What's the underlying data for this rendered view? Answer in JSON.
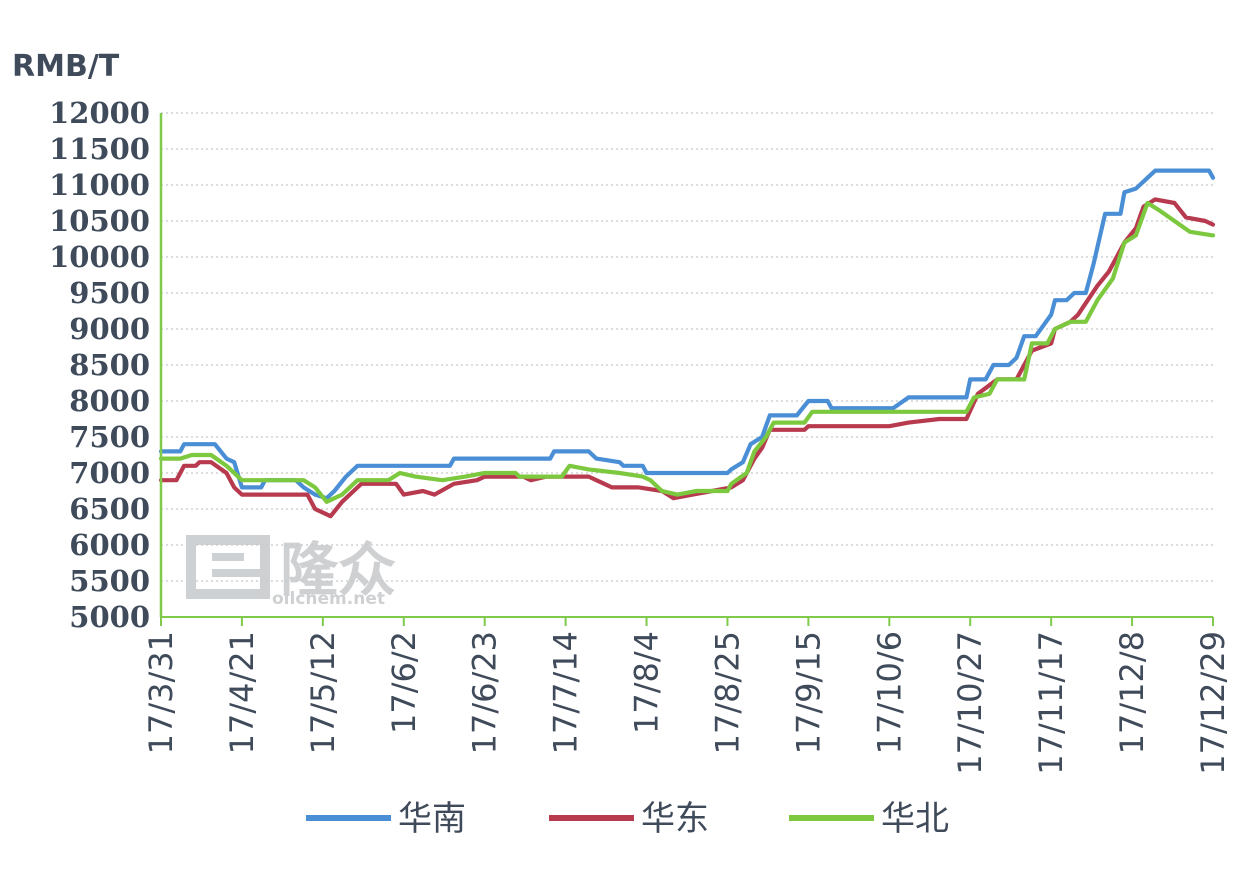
{
  "watermark": {
    "brand": "隆众",
    "site": "oilchem.net"
  },
  "colors": {
    "axis": "#7fc94b",
    "grid": "#c8c8c8",
    "text": "#3f4a5a"
  },
  "chart_data": {
    "type": "line",
    "ylabel": "RMB/T",
    "ylim": [
      5000,
      12000
    ],
    "yticks": [
      "12000",
      "11500",
      "11000",
      "10500",
      "10000",
      "9500",
      "9000",
      "8500",
      "8000",
      "7500",
      "7000",
      "6500",
      "6000",
      "5500",
      "5000"
    ],
    "grid": "horizontal dotted",
    "legend": "bottom",
    "xlim": [
      "2017-03-31",
      "2017-12-29"
    ],
    "x_tick_labels": [
      "17/3/31",
      "17/4/21",
      "17/5/12",
      "17/6/2",
      "17/6/23",
      "17/7/14",
      "17/8/4",
      "17/8/25",
      "17/9/15",
      "17/10/6",
      "17/10/27",
      "17/11/17",
      "17/12/8",
      "17/12/29"
    ],
    "series": [
      {
        "name": "华南",
        "color": "#4a8fd6",
        "points": [
          [
            "2017-03-31",
            7300
          ],
          [
            "2017-04-05",
            7300
          ],
          [
            "2017-04-06",
            7400
          ],
          [
            "2017-04-14",
            7400
          ],
          [
            "2017-04-17",
            7200
          ],
          [
            "2017-04-19",
            7150
          ],
          [
            "2017-04-21",
            6800
          ],
          [
            "2017-04-26",
            6800
          ],
          [
            "2017-04-27",
            6900
          ],
          [
            "2017-05-03",
            6900
          ],
          [
            "2017-05-05",
            6900
          ],
          [
            "2017-05-07",
            6800
          ],
          [
            "2017-05-10",
            6700
          ],
          [
            "2017-05-13",
            6650
          ],
          [
            "2017-05-15",
            6750
          ],
          [
            "2017-05-18",
            6950
          ],
          [
            "2017-05-20",
            7050
          ],
          [
            "2017-05-21",
            7100
          ],
          [
            "2017-06-14",
            7100
          ],
          [
            "2017-06-15",
            7200
          ],
          [
            "2017-07-10",
            7200
          ],
          [
            "2017-07-11",
            7300
          ],
          [
            "2017-07-20",
            7300
          ],
          [
            "2017-07-22",
            7200
          ],
          [
            "2017-07-28",
            7150
          ],
          [
            "2017-07-29",
            7100
          ],
          [
            "2017-08-03",
            7100
          ],
          [
            "2017-08-04",
            7000
          ],
          [
            "2017-08-25",
            7000
          ],
          [
            "2017-08-26",
            7050
          ],
          [
            "2017-08-29",
            7150
          ],
          [
            "2017-08-31",
            7400
          ],
          [
            "2017-09-03",
            7500
          ],
          [
            "2017-09-05",
            7800
          ],
          [
            "2017-09-12",
            7800
          ],
          [
            "2017-09-15",
            8000
          ],
          [
            "2017-09-20",
            8000
          ],
          [
            "2017-09-21",
            7900
          ],
          [
            "2017-10-07",
            7900
          ],
          [
            "2017-10-11",
            8050
          ],
          [
            "2017-10-26",
            8050
          ],
          [
            "2017-10-27",
            8300
          ],
          [
            "2017-10-31",
            8300
          ],
          [
            "2017-11-02",
            8500
          ],
          [
            "2017-11-06",
            8500
          ],
          [
            "2017-11-08",
            8600
          ],
          [
            "2017-11-10",
            8900
          ],
          [
            "2017-11-13",
            8900
          ],
          [
            "2017-11-17",
            9200
          ],
          [
            "2017-11-18",
            9400
          ],
          [
            "2017-11-21",
            9400
          ],
          [
            "2017-11-23",
            9500
          ],
          [
            "2017-11-26",
            9500
          ],
          [
            "2017-11-28",
            9900
          ],
          [
            "2017-12-01",
            10600
          ],
          [
            "2017-12-05",
            10600
          ],
          [
            "2017-12-06",
            10900
          ],
          [
            "2017-12-09",
            10950
          ],
          [
            "2017-12-12",
            11100
          ],
          [
            "2017-12-14",
            11200
          ],
          [
            "2017-12-28",
            11200
          ],
          [
            "2017-12-29",
            11100
          ]
        ]
      },
      {
        "name": "华东",
        "color": "#b83a4e",
        "points": [
          [
            "2017-03-31",
            6900
          ],
          [
            "2017-04-04",
            6900
          ],
          [
            "2017-04-06",
            7100
          ],
          [
            "2017-04-09",
            7100
          ],
          [
            "2017-04-10",
            7150
          ],
          [
            "2017-04-13",
            7150
          ],
          [
            "2017-04-17",
            7000
          ],
          [
            "2017-04-19",
            6800
          ],
          [
            "2017-04-21",
            6700
          ],
          [
            "2017-05-08",
            6700
          ],
          [
            "2017-05-10",
            6500
          ],
          [
            "2017-05-14",
            6400
          ],
          [
            "2017-05-17",
            6600
          ],
          [
            "2017-05-21",
            6800
          ],
          [
            "2017-05-22",
            6850
          ],
          [
            "2017-05-31",
            6850
          ],
          [
            "2017-06-02",
            6700
          ],
          [
            "2017-06-07",
            6750
          ],
          [
            "2017-06-10",
            6700
          ],
          [
            "2017-06-15",
            6850
          ],
          [
            "2017-06-21",
            6900
          ],
          [
            "2017-06-23",
            6950
          ],
          [
            "2017-07-03",
            6950
          ],
          [
            "2017-07-05",
            6900
          ],
          [
            "2017-07-09",
            6950
          ],
          [
            "2017-07-20",
            6950
          ],
          [
            "2017-07-24",
            6850
          ],
          [
            "2017-07-26",
            6800
          ],
          [
            "2017-08-02",
            6800
          ],
          [
            "2017-08-08",
            6750
          ],
          [
            "2017-08-11",
            6650
          ],
          [
            "2017-08-16",
            6700
          ],
          [
            "2017-08-21",
            6750
          ],
          [
            "2017-08-26",
            6800
          ],
          [
            "2017-08-29",
            6900
          ],
          [
            "2017-09-01",
            7200
          ],
          [
            "2017-09-03",
            7350
          ],
          [
            "2017-09-05",
            7600
          ],
          [
            "2017-09-14",
            7600
          ],
          [
            "2017-09-15",
            7650
          ],
          [
            "2017-10-06",
            7650
          ],
          [
            "2017-10-11",
            7700
          ],
          [
            "2017-10-19",
            7750
          ],
          [
            "2017-10-26",
            7750
          ],
          [
            "2017-10-29",
            8100
          ],
          [
            "2017-11-03",
            8300
          ],
          [
            "2017-11-08",
            8300
          ],
          [
            "2017-11-12",
            8700
          ],
          [
            "2017-11-17",
            8800
          ],
          [
            "2017-11-18",
            9000
          ],
          [
            "2017-11-22",
            9100
          ],
          [
            "2017-11-24",
            9200
          ],
          [
            "2017-11-29",
            9600
          ],
          [
            "2017-12-02",
            9800
          ],
          [
            "2017-12-06",
            10200
          ],
          [
            "2017-12-09",
            10400
          ],
          [
            "2017-12-11",
            10700
          ],
          [
            "2017-12-14",
            10800
          ],
          [
            "2017-12-19",
            10750
          ],
          [
            "2017-12-22",
            10550
          ],
          [
            "2017-12-27",
            10500
          ],
          [
            "2017-12-29",
            10450
          ]
        ]
      },
      {
        "name": "华北",
        "color": "#7cc83e",
        "points": [
          [
            "2017-03-31",
            7200
          ],
          [
            "2017-04-05",
            7200
          ],
          [
            "2017-04-08",
            7250
          ],
          [
            "2017-04-13",
            7250
          ],
          [
            "2017-04-17",
            7100
          ],
          [
            "2017-04-20",
            6950
          ],
          [
            "2017-04-21",
            6900
          ],
          [
            "2017-05-07",
            6900
          ],
          [
            "2017-05-10",
            6800
          ],
          [
            "2017-05-13",
            6600
          ],
          [
            "2017-05-17",
            6700
          ],
          [
            "2017-05-21",
            6900
          ],
          [
            "2017-05-29",
            6900
          ],
          [
            "2017-06-01",
            7000
          ],
          [
            "2017-06-05",
            6950
          ],
          [
            "2017-06-12",
            6900
          ],
          [
            "2017-06-18",
            6950
          ],
          [
            "2017-06-23",
            7000
          ],
          [
            "2017-07-01",
            7000
          ],
          [
            "2017-07-02",
            6950
          ],
          [
            "2017-07-13",
            6950
          ],
          [
            "2017-07-15",
            7100
          ],
          [
            "2017-07-20",
            7050
          ],
          [
            "2017-07-28",
            7000
          ],
          [
            "2017-08-03",
            6950
          ],
          [
            "2017-08-05",
            6900
          ],
          [
            "2017-08-08",
            6750
          ],
          [
            "2017-08-12",
            6700
          ],
          [
            "2017-08-17",
            6750
          ],
          [
            "2017-08-25",
            6750
          ],
          [
            "2017-08-26",
            6850
          ],
          [
            "2017-08-30",
            7000
          ],
          [
            "2017-09-01",
            7300
          ],
          [
            "2017-09-04",
            7500
          ],
          [
            "2017-09-06",
            7700
          ],
          [
            "2017-09-14",
            7700
          ],
          [
            "2017-09-16",
            7850
          ],
          [
            "2017-10-26",
            7850
          ],
          [
            "2017-10-28",
            8050
          ],
          [
            "2017-11-01",
            8100
          ],
          [
            "2017-11-03",
            8300
          ],
          [
            "2017-11-10",
            8300
          ],
          [
            "2017-11-12",
            8800
          ],
          [
            "2017-11-16",
            8800
          ],
          [
            "2017-11-18",
            9000
          ],
          [
            "2017-11-22",
            9100
          ],
          [
            "2017-11-26",
            9100
          ],
          [
            "2017-11-29",
            9400
          ],
          [
            "2017-12-03",
            9700
          ],
          [
            "2017-12-06",
            10200
          ],
          [
            "2017-12-09",
            10300
          ],
          [
            "2017-12-12",
            10750
          ],
          [
            "2017-12-15",
            10650
          ],
          [
            "2017-12-19",
            10500
          ],
          [
            "2017-12-23",
            10350
          ],
          [
            "2017-12-29",
            10300
          ]
        ]
      }
    ]
  }
}
